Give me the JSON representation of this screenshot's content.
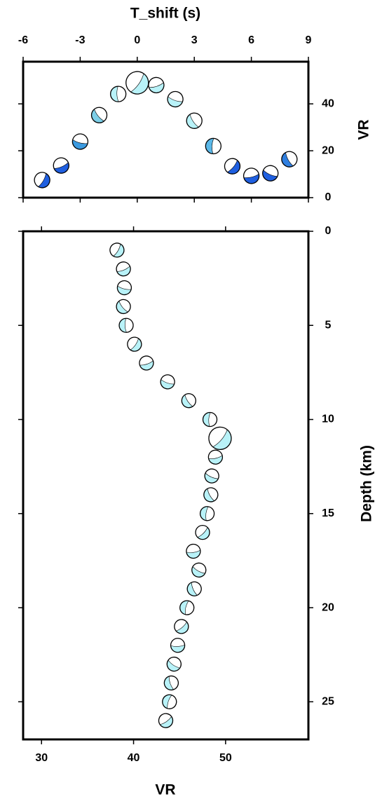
{
  "chart_data": [
    {
      "type": "scatter",
      "x_label": "T_shift (s)",
      "y_label": "VR",
      "x": [
        -5,
        -4,
        -3,
        -2,
        -1,
        0,
        1,
        2,
        3,
        4,
        5,
        6,
        7,
        8
      ],
      "values": [
        7.5,
        13.7,
        23.9,
        35.2,
        44.2,
        49,
        48,
        42,
        32.8,
        22,
        13.4,
        9.3,
        10.4,
        16.4
      ],
      "colors": [
        "#1f5fe0",
        "#1f5fe0",
        "#3b9ae0",
        "#7ccfe8",
        "#b8f2f8",
        "#b8f2f8",
        "#b8f2f8",
        "#b8f2f8",
        "#b8f2f8",
        "#5ab8e8",
        "#1f5fe0",
        "#1f5fe0",
        "#1f5fe0",
        "#2f7fe0"
      ],
      "xlim": [
        -6,
        9
      ],
      "xticks": [
        -6,
        -3,
        0,
        3,
        6,
        9
      ],
      "ylim": [
        0,
        58
      ],
      "yticks": [
        0,
        20,
        40
      ]
    },
    {
      "type": "scatter",
      "x_label": "VR",
      "y_label": "Depth (km)",
      "x": [
        38.2,
        38.9,
        39.0,
        38.9,
        39.2,
        40.1,
        41.4,
        43.7,
        46.0,
        48.3,
        49.4,
        48.9,
        48.5,
        48.4,
        48.0,
        47.5,
        46.5,
        47.1,
        46.6,
        45.8,
        45.2,
        44.8,
        44.4,
        44.1,
        43.9,
        43.5
      ],
      "values": [
        1,
        2,
        3,
        4,
        5,
        6,
        7,
        8,
        9,
        10,
        11,
        12,
        13,
        14,
        15,
        16,
        17,
        18,
        19,
        20,
        21,
        22,
        23,
        24,
        25,
        26
      ],
      "color": "#b8f2f8",
      "xlim": [
        28,
        59
      ],
      "xticks": [
        30,
        40,
        50
      ],
      "ylim": [
        0,
        27
      ],
      "yticks": [
        0,
        5,
        10,
        15,
        20,
        25
      ],
      "y_inverted": true
    }
  ]
}
